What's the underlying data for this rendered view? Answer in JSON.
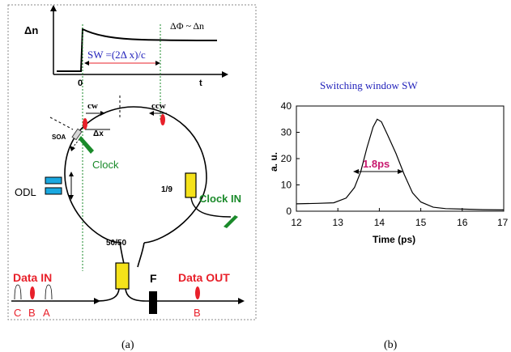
{
  "panel_a": {
    "caption": "(a)",
    "inset": {
      "ylabel": "Δn",
      "xlabel": "t",
      "origin": "0",
      "relation": "ΔΦ ~ Δn",
      "window_label": "SW =(2Δ x)/c"
    },
    "loop": {
      "cw": "cw",
      "ccw": "ccw",
      "soa": "SOA",
      "delta_x": "Δx",
      "clock": "Clock",
      "odl": "ODL",
      "coupler_19": "1/9",
      "clock_in": "Clock IN",
      "coupler_5050": "50/50"
    },
    "io": {
      "data_in": "Data IN",
      "data_out": "Data OUT",
      "filter": "F",
      "pulse_c": "C",
      "pulse_b": "B",
      "pulse_a": "A",
      "pulse_out_b": "B"
    },
    "colors": {
      "red": "#e8202a",
      "green": "#1a8a2a",
      "yellow": "#f5e21a",
      "cyan": "#1aa8e0",
      "blue": "#2222bb"
    }
  },
  "panel_b": {
    "caption": "(b)",
    "chart_data": {
      "type": "line",
      "title": "Switching window SW",
      "xlabel": "Time (ps)",
      "ylabel": "a. u.",
      "xlim": [
        12,
        17
      ],
      "ylim": [
        0,
        40
      ],
      "xticks": [
        12,
        13,
        14,
        15,
        16,
        17
      ],
      "yticks": [
        0,
        10,
        20,
        30,
        40
      ],
      "annotation": "1.8ps",
      "series": [
        {
          "values": [
            [
              12.0,
              2.8
            ],
            [
              12.5,
              3.0
            ],
            [
              12.9,
              3.2
            ],
            [
              13.2,
              5.0
            ],
            [
              13.4,
              9.0
            ],
            [
              13.55,
              15.0
            ],
            [
              13.7,
              24.0
            ],
            [
              13.85,
              32.0
            ],
            [
              13.95,
              35.0
            ],
            [
              14.05,
              34.0
            ],
            [
              14.2,
              29.0
            ],
            [
              14.4,
              22.0
            ],
            [
              14.6,
              14.0
            ],
            [
              14.8,
              7.0
            ],
            [
              15.0,
              3.5
            ],
            [
              15.3,
              1.5
            ],
            [
              15.6,
              1.0
            ],
            [
              16.0,
              0.8
            ],
            [
              16.5,
              0.6
            ],
            [
              17.0,
              0.5
            ]
          ]
        }
      ]
    }
  }
}
